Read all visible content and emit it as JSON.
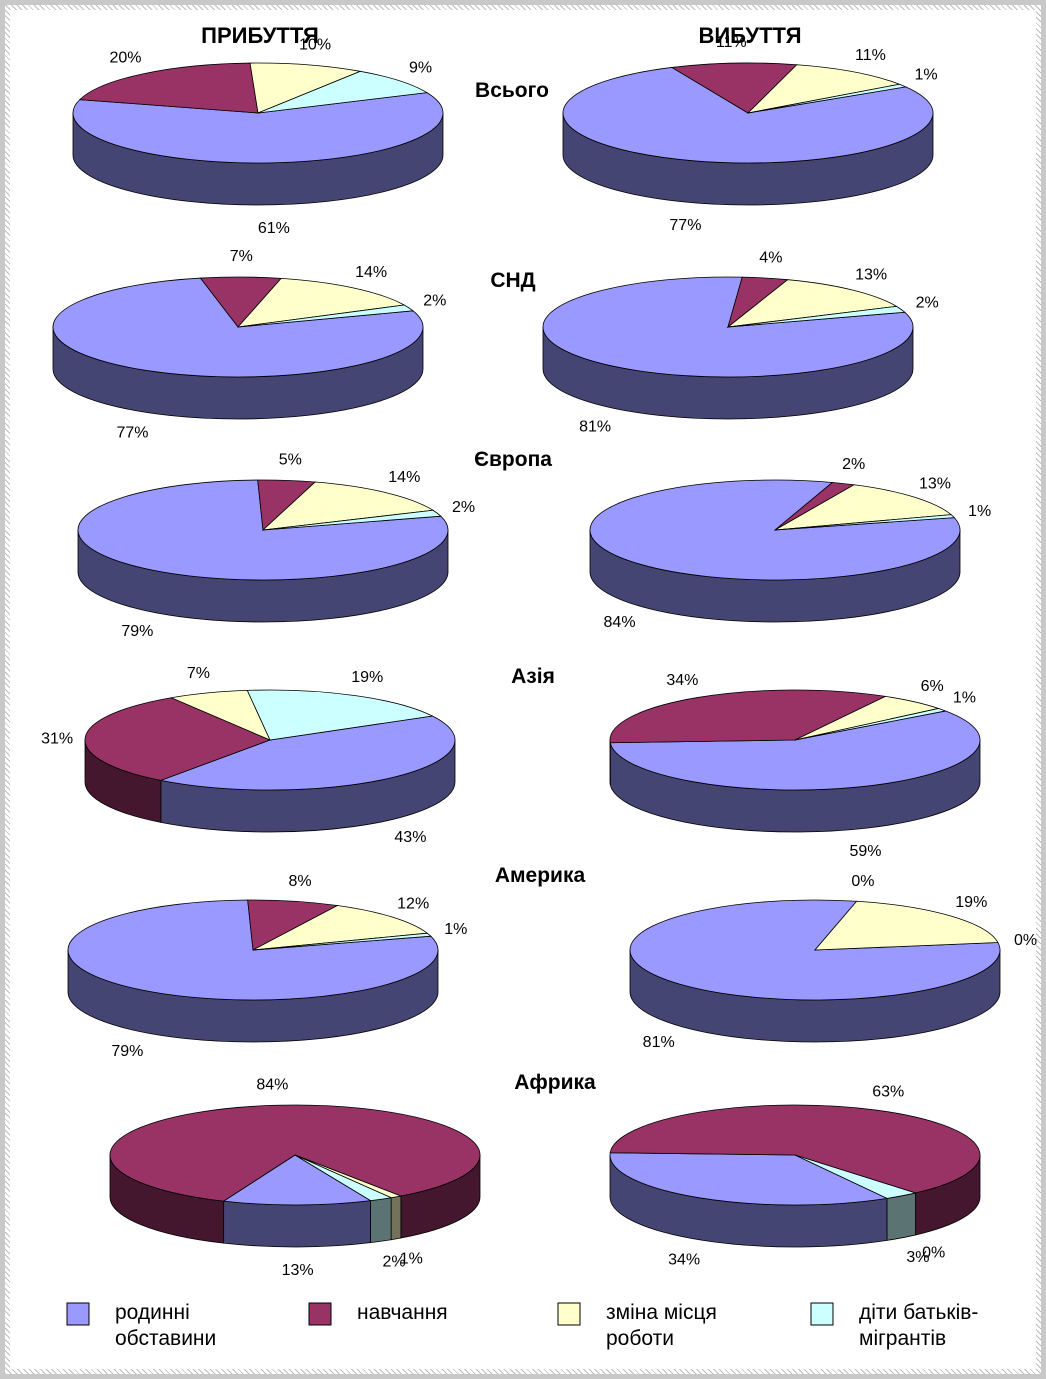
{
  "chart_data": {
    "type": "pie",
    "columns": [
      "ПРИБУТТЯ",
      "ВИБУТТЯ"
    ],
    "categories": [
      "родинні обставини",
      "навчання",
      "зміна місця роботи",
      "діти батьків-мігрантів"
    ],
    "colors": {
      "родинні обставини": "#9999ff",
      "навчання": "#993366",
      "зміна місця роботи": "#ffffcc",
      "діти батьків-мігрантів": "#ccffff"
    },
    "regions": [
      {
        "name": "Всього",
        "arrival": [
          61,
          20,
          10,
          9
        ],
        "departure": [
          77,
          11,
          11,
          1
        ]
      },
      {
        "name": "СНД",
        "arrival": [
          77,
          7,
          14,
          2
        ],
        "departure": [
          81,
          4,
          13,
          2
        ]
      },
      {
        "name": "Європа",
        "arrival": [
          79,
          5,
          14,
          2
        ],
        "departure": [
          84,
          2,
          13,
          1
        ]
      },
      {
        "name": "Азія",
        "arrival": [
          43,
          31,
          7,
          19
        ],
        "departure": [
          59,
          34,
          6,
          1
        ]
      },
      {
        "name": "Америка",
        "arrival": [
          79,
          8,
          12,
          1
        ],
        "departure": [
          81,
          0,
          19,
          0
        ]
      },
      {
        "name": "Африка",
        "arrival": [
          13,
          84,
          1,
          2
        ],
        "departure": [
          34,
          63,
          0,
          3
        ]
      }
    ],
    "legend": {
      "position": "bottom",
      "items": [
        {
          "label": [
            "родинні",
            "обставини"
          ]
        },
        {
          "label": [
            "навчання"
          ]
        },
        {
          "label": [
            "зміна місця",
            "роботи"
          ]
        },
        {
          "label": [
            "діти батьків-",
            "мігрантів"
          ]
        }
      ]
    }
  }
}
